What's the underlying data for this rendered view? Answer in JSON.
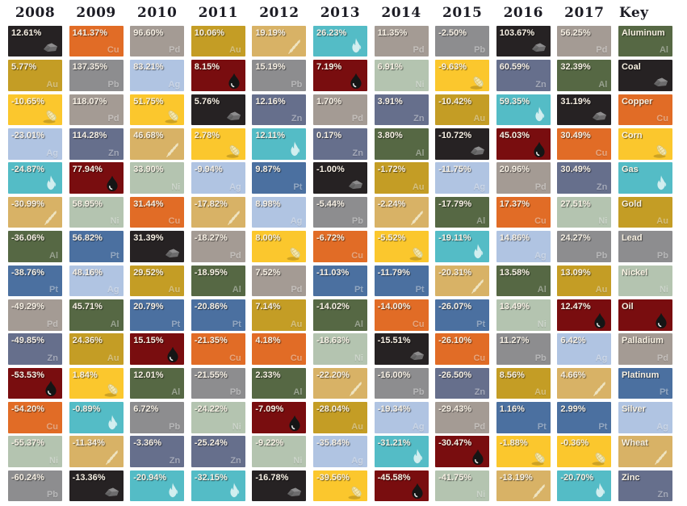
{
  "key_label": "Key",
  "commodities": {
    "Al": {
      "name": "Aluminum",
      "symbol": "Al",
      "color": "#566844",
      "icon": null
    },
    "Coal": {
      "name": "Coal",
      "symbol": "",
      "color": "#262223",
      "icon": "coal"
    },
    "Cu": {
      "name": "Copper",
      "symbol": "Cu",
      "color": "#e16c26",
      "icon": null
    },
    "Corn": {
      "name": "Corn",
      "symbol": "",
      "color": "#fbc72d",
      "icon": "corn"
    },
    "Gas": {
      "name": "Gas",
      "symbol": "",
      "color": "#54bcc6",
      "icon": "flame"
    },
    "Au": {
      "name": "Gold",
      "symbol": "Au",
      "color": "#c49d25",
      "icon": null
    },
    "Pb": {
      "name": "Lead",
      "symbol": "Pb",
      "color": "#8d8d8f",
      "icon": null
    },
    "Ni": {
      "name": "Nickel",
      "symbol": "Ni",
      "color": "#b4c4b0",
      "icon": null
    },
    "Oil": {
      "name": "Oil",
      "symbol": "",
      "color": "#790d0f",
      "icon": "oil-drop"
    },
    "Pd": {
      "name": "Palladium",
      "symbol": "Pd",
      "color": "#a49b94",
      "icon": null
    },
    "Pt": {
      "name": "Platinum",
      "symbol": "Pt",
      "color": "#4b70a0",
      "icon": null
    },
    "Ag": {
      "name": "Silver",
      "symbol": "Ag",
      "color": "#b0c4e2",
      "icon": null
    },
    "Wheat": {
      "name": "Wheat",
      "symbol": "",
      "color": "#d8b266",
      "icon": "wheat"
    },
    "Zn": {
      "name": "Zinc",
      "symbol": "Zn",
      "color": "#666f8c",
      "icon": null
    }
  },
  "key_order": [
    "Al",
    "Coal",
    "Cu",
    "Corn",
    "Gas",
    "Au",
    "Pb",
    "Ni",
    "Oil",
    "Pd",
    "Pt",
    "Ag",
    "Wheat",
    "Zn"
  ],
  "chart_data": {
    "type": "heatmap",
    "description": "Annual commodity returns ranked best-to-worst per year, periodic-table style",
    "legend_position": "right",
    "columns": [
      {
        "year": "2008",
        "cells": [
          {
            "value": "12.61%",
            "commodity": "Coal"
          },
          {
            "value": "5.77%",
            "commodity": "Au"
          },
          {
            "value": "-10.65%",
            "commodity": "Corn"
          },
          {
            "value": "-23.01%",
            "commodity": "Ag"
          },
          {
            "value": "-24.87%",
            "commodity": "Gas"
          },
          {
            "value": "-30.99%",
            "commodity": "Wheat"
          },
          {
            "value": "-36.06%",
            "commodity": "Al"
          },
          {
            "value": "-38.76%",
            "commodity": "Pt"
          },
          {
            "value": "-49.29%",
            "commodity": "Pd"
          },
          {
            "value": "-49.85%",
            "commodity": "Zn"
          },
          {
            "value": "-53.53%",
            "commodity": "Oil"
          },
          {
            "value": "-54.20%",
            "commodity": "Cu"
          },
          {
            "value": "-55.37%",
            "commodity": "Ni"
          },
          {
            "value": "-60.24%",
            "commodity": "Pb"
          }
        ]
      },
      {
        "year": "2009",
        "cells": [
          {
            "value": "141.37%",
            "commodity": "Cu"
          },
          {
            "value": "137.35%",
            "commodity": "Pb"
          },
          {
            "value": "118.07%",
            "commodity": "Pd"
          },
          {
            "value": "114.28%",
            "commodity": "Zn"
          },
          {
            "value": "77.94%",
            "commodity": "Oil"
          },
          {
            "value": "58.95%",
            "commodity": "Ni"
          },
          {
            "value": "56.82%",
            "commodity": "Pt"
          },
          {
            "value": "48.16%",
            "commodity": "Ag"
          },
          {
            "value": "45.71%",
            "commodity": "Al"
          },
          {
            "value": "24.36%",
            "commodity": "Au"
          },
          {
            "value": "1.84%",
            "commodity": "Corn"
          },
          {
            "value": "-0.89%",
            "commodity": "Gas"
          },
          {
            "value": "-11.34%",
            "commodity": "Wheat"
          },
          {
            "value": "-13.36%",
            "commodity": "Coal"
          }
        ]
      },
      {
        "year": "2010",
        "cells": [
          {
            "value": "96.60%",
            "commodity": "Pd"
          },
          {
            "value": "83.21%",
            "commodity": "Ag"
          },
          {
            "value": "51.75%",
            "commodity": "Corn"
          },
          {
            "value": "46.68%",
            "commodity": "Wheat"
          },
          {
            "value": "33.90%",
            "commodity": "Ni"
          },
          {
            "value": "31.44%",
            "commodity": "Cu"
          },
          {
            "value": "31.39%",
            "commodity": "Coal"
          },
          {
            "value": "29.52%",
            "commodity": "Au"
          },
          {
            "value": "20.79%",
            "commodity": "Pt"
          },
          {
            "value": "15.15%",
            "commodity": "Oil"
          },
          {
            "value": "12.01%",
            "commodity": "Al"
          },
          {
            "value": "6.72%",
            "commodity": "Pb"
          },
          {
            "value": "-3.36%",
            "commodity": "Zn"
          },
          {
            "value": "-20.94%",
            "commodity": "Gas"
          }
        ]
      },
      {
        "year": "2011",
        "cells": [
          {
            "value": "10.06%",
            "commodity": "Au"
          },
          {
            "value": "8.15%",
            "commodity": "Oil"
          },
          {
            "value": "5.76%",
            "commodity": "Coal"
          },
          {
            "value": "2.78%",
            "commodity": "Corn"
          },
          {
            "value": "-9.94%",
            "commodity": "Ag"
          },
          {
            "value": "-17.82%",
            "commodity": "Wheat"
          },
          {
            "value": "-18.27%",
            "commodity": "Pd"
          },
          {
            "value": "-18.95%",
            "commodity": "Al"
          },
          {
            "value": "-20.86%",
            "commodity": "Pt"
          },
          {
            "value": "-21.35%",
            "commodity": "Cu"
          },
          {
            "value": "-21.55%",
            "commodity": "Pb"
          },
          {
            "value": "-24.22%",
            "commodity": "Ni"
          },
          {
            "value": "-25.24%",
            "commodity": "Zn"
          },
          {
            "value": "-32.15%",
            "commodity": "Gas"
          }
        ]
      },
      {
        "year": "2012",
        "cells": [
          {
            "value": "19.19%",
            "commodity": "Wheat"
          },
          {
            "value": "15.19%",
            "commodity": "Pb"
          },
          {
            "value": "12.16%",
            "commodity": "Zn"
          },
          {
            "value": "12.11%",
            "commodity": "Gas"
          },
          {
            "value": "9.87%",
            "commodity": "Pt"
          },
          {
            "value": "8.98%",
            "commodity": "Ag"
          },
          {
            "value": "8.00%",
            "commodity": "Corn"
          },
          {
            "value": "7.52%",
            "commodity": "Pd"
          },
          {
            "value": "7.14%",
            "commodity": "Au"
          },
          {
            "value": "4.18%",
            "commodity": "Cu"
          },
          {
            "value": "2.33%",
            "commodity": "Al"
          },
          {
            "value": "-7.09%",
            "commodity": "Oil"
          },
          {
            "value": "-9.22%",
            "commodity": "Ni"
          },
          {
            "value": "-16.78%",
            "commodity": "Coal"
          }
        ]
      },
      {
        "year": "2013",
        "cells": [
          {
            "value": "26.23%",
            "commodity": "Gas"
          },
          {
            "value": "7.19%",
            "commodity": "Oil"
          },
          {
            "value": "1.70%",
            "commodity": "Pd"
          },
          {
            "value": "0.17%",
            "commodity": "Zn"
          },
          {
            "value": "-1.00%",
            "commodity": "Coal"
          },
          {
            "value": "-5.44%",
            "commodity": "Pb"
          },
          {
            "value": "-6.72%",
            "commodity": "Cu"
          },
          {
            "value": "-11.03%",
            "commodity": "Pt"
          },
          {
            "value": "-14.02%",
            "commodity": "Al"
          },
          {
            "value": "-18.63%",
            "commodity": "Ni"
          },
          {
            "value": "-22.20%",
            "commodity": "Wheat"
          },
          {
            "value": "-28.04%",
            "commodity": "Au"
          },
          {
            "value": "-35.84%",
            "commodity": "Ag"
          },
          {
            "value": "-39.56%",
            "commodity": "Corn"
          }
        ]
      },
      {
        "year": "2014",
        "cells": [
          {
            "value": "11.35%",
            "commodity": "Pd"
          },
          {
            "value": "6.91%",
            "commodity": "Ni"
          },
          {
            "value": "3.91%",
            "commodity": "Zn"
          },
          {
            "value": "3.80%",
            "commodity": "Al"
          },
          {
            "value": "-1.72%",
            "commodity": "Au"
          },
          {
            "value": "-2.24%",
            "commodity": "Wheat"
          },
          {
            "value": "-5.52%",
            "commodity": "Corn"
          },
          {
            "value": "-11.79%",
            "commodity": "Pt"
          },
          {
            "value": "-14.00%",
            "commodity": "Cu"
          },
          {
            "value": "-15.51%",
            "commodity": "Coal"
          },
          {
            "value": "-16.00%",
            "commodity": "Pb"
          },
          {
            "value": "-19.34%",
            "commodity": "Ag"
          },
          {
            "value": "-31.21%",
            "commodity": "Gas"
          },
          {
            "value": "-45.58%",
            "commodity": "Oil"
          }
        ]
      },
      {
        "year": "2015",
        "cells": [
          {
            "value": "-2.50%",
            "commodity": "Pb"
          },
          {
            "value": "-9.63%",
            "commodity": "Corn"
          },
          {
            "value": "-10.42%",
            "commodity": "Au"
          },
          {
            "value": "-10.72%",
            "commodity": "Coal"
          },
          {
            "value": "-11.75%",
            "commodity": "Ag"
          },
          {
            "value": "-17.79%",
            "commodity": "Al"
          },
          {
            "value": "-19.11%",
            "commodity": "Gas"
          },
          {
            "value": "-20.31%",
            "commodity": "Wheat"
          },
          {
            "value": "-26.07%",
            "commodity": "Pt"
          },
          {
            "value": "-26.10%",
            "commodity": "Cu"
          },
          {
            "value": "-26.50%",
            "commodity": "Zn"
          },
          {
            "value": "-29.43%",
            "commodity": "Pd"
          },
          {
            "value": "-30.47%",
            "commodity": "Oil"
          },
          {
            "value": "-41.75%",
            "commodity": "Ni"
          }
        ]
      },
      {
        "year": "2016",
        "cells": [
          {
            "value": "103.67%",
            "commodity": "Coal"
          },
          {
            "value": "60.59%",
            "commodity": "Zn"
          },
          {
            "value": "59.35%",
            "commodity": "Gas"
          },
          {
            "value": "45.03%",
            "commodity": "Oil"
          },
          {
            "value": "20.96%",
            "commodity": "Pd"
          },
          {
            "value": "17.37%",
            "commodity": "Cu"
          },
          {
            "value": "14.86%",
            "commodity": "Ag"
          },
          {
            "value": "13.58%",
            "commodity": "Al"
          },
          {
            "value": "13.49%",
            "commodity": "Ni"
          },
          {
            "value": "11.27%",
            "commodity": "Pb"
          },
          {
            "value": "8.56%",
            "commodity": "Au"
          },
          {
            "value": "1.16%",
            "commodity": "Pt"
          },
          {
            "value": "-1.88%",
            "commodity": "Corn"
          },
          {
            "value": "-13.19%",
            "commodity": "Wheat"
          }
        ]
      },
      {
        "year": "2017",
        "cells": [
          {
            "value": "56.25%",
            "commodity": "Pd"
          },
          {
            "value": "32.39%",
            "commodity": "Al"
          },
          {
            "value": "31.19%",
            "commodity": "Coal"
          },
          {
            "value": "30.49%",
            "commodity": "Cu"
          },
          {
            "value": "30.49%",
            "commodity": "Zn"
          },
          {
            "value": "27.51%",
            "commodity": "Ni"
          },
          {
            "value": "24.27%",
            "commodity": "Pb"
          },
          {
            "value": "13.09%",
            "commodity": "Au"
          },
          {
            "value": "12.47%",
            "commodity": "Oil"
          },
          {
            "value": "6.42%",
            "commodity": "Ag"
          },
          {
            "value": "4.66%",
            "commodity": "Wheat"
          },
          {
            "value": "2.99%",
            "commodity": "Pt"
          },
          {
            "value": "-0.36%",
            "commodity": "Corn"
          },
          {
            "value": "-20.70%",
            "commodity": "Gas"
          }
        ]
      }
    ]
  }
}
